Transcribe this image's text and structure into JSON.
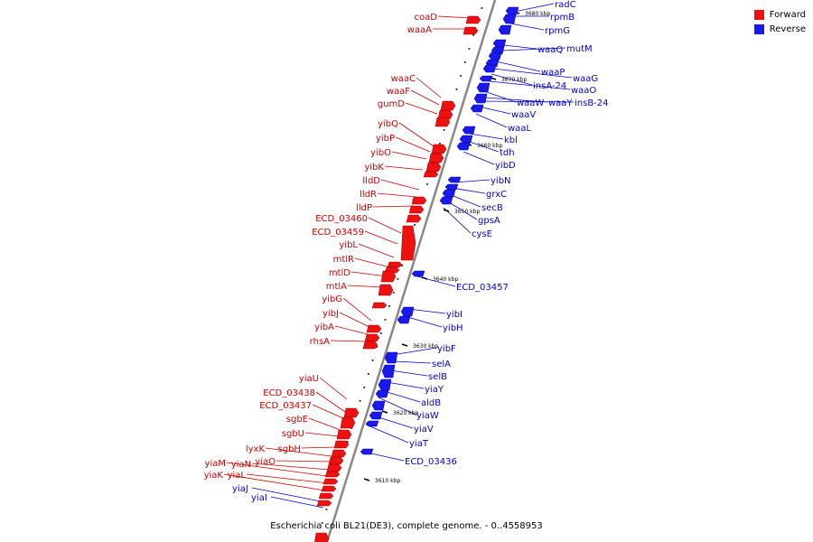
{
  "legend": {
    "forward_label": "Forward",
    "reverse_label": "Reverse",
    "forward_color": "#ee1111",
    "reverse_color": "#1a1aee"
  },
  "caption": "Escherichia coli BL21(DE3), complete genome. - 0..4558953",
  "colors": {
    "forward_label": "#cc0000",
    "reverse_label": "#0000cc",
    "axis": "#888888"
  },
  "ticks": [
    "3680 kbp",
    "3670 kbp",
    "3660 kbp",
    "3650 kbp",
    "3640 kbp",
    "3630 kbp",
    "3620 kbp",
    "3610 kbp"
  ],
  "forward_genes": [
    "coaD",
    "waaA",
    "waaC",
    "waaF",
    "gumD",
    "yibQ",
    "yibP",
    "yibO",
    "yibK",
    "lldD",
    "lldR",
    "lldP",
    "ECD_03460",
    "ECD_03459",
    "yibL",
    "mtlR",
    "mtlD",
    "mtlA",
    "yibG",
    "yibJ",
    "yibA",
    "rhsA",
    "yiaU",
    "ECD_03438",
    "ECD_03437",
    "sgbE",
    "sgbU",
    "sgbH",
    "lyxK",
    "yiaO",
    "yiaN",
    "yiaM",
    "yiaL",
    "yiaK"
  ],
  "reverse_genes": [
    "radC",
    "rpmB",
    "rpmG",
    "waaQ",
    "mutM",
    "waaP",
    "waaG",
    "insA-24",
    "waaO",
    "waaW",
    "waaY",
    "insB-24",
    "waaV",
    "waaL",
    "kbl",
    "tdh",
    "yibD",
    "yibN",
    "grxC",
    "secB",
    "gpsA",
    "cysE",
    "ECD_03457",
    "yibI",
    "yibH",
    "yibF",
    "selA",
    "selB",
    "yiaY",
    "aldB",
    "yiaW",
    "yiaV",
    "yiaT",
    "ECD_03436",
    "yiaJ",
    "yiaI"
  ]
}
